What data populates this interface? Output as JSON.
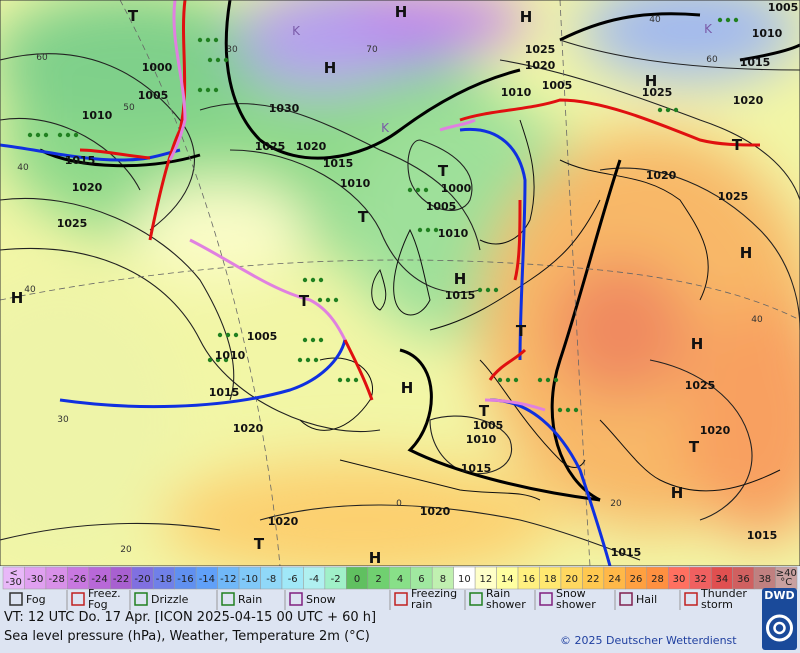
{
  "map": {
    "pressure_labels": [
      "1000",
      "1005",
      "1010",
      "1015",
      "1020",
      "1025",
      "1030",
      "1025",
      "1020",
      "1015",
      "1010",
      "1000",
      "1005",
      "1010",
      "1015",
      "1005",
      "1010",
      "1015",
      "1020",
      "1005",
      "1010",
      "1015",
      "1020",
      "1020",
      "1025",
      "1020",
      "1010",
      "1005",
      "1025",
      "1020",
      "1015",
      "1010",
      "1005",
      "1020",
      "1025",
      "1025",
      "1020",
      "1015",
      "1015"
    ],
    "small_labels": [
      "40",
      "40",
      "30",
      "20",
      "60",
      "50",
      "70",
      "40",
      "20",
      "0",
      "60",
      "30",
      "40"
    ],
    "centers": [
      "H",
      "H",
      "H",
      "H",
      "H",
      "H",
      "H",
      "H",
      "H",
      "H",
      "H",
      "T",
      "T",
      "T",
      "T",
      "T",
      "T",
      "T",
      "T",
      "T"
    ],
    "k_labels": [
      "K",
      "K",
      "K"
    ]
  },
  "scale": {
    "labels": [
      [
        "<",
        "-30"
      ],
      [
        "-30"
      ],
      [
        "-28"
      ],
      [
        "-26"
      ],
      [
        "-24"
      ],
      [
        "-22"
      ],
      [
        "-20"
      ],
      [
        "-18"
      ],
      [
        "-16"
      ],
      [
        "-14"
      ],
      [
        "-12"
      ],
      [
        "-10"
      ],
      [
        "-8"
      ],
      [
        "-6"
      ],
      [
        "-4"
      ],
      [
        "-2"
      ],
      [
        "0"
      ],
      [
        "2"
      ],
      [
        "4"
      ],
      [
        "6"
      ],
      [
        "8"
      ],
      [
        "10"
      ],
      [
        "12"
      ],
      [
        "14"
      ],
      [
        "16"
      ],
      [
        "18"
      ],
      [
        "20"
      ],
      [
        "22"
      ],
      [
        "24"
      ],
      [
        "26"
      ],
      [
        "28"
      ],
      [
        "30"
      ],
      [
        "32"
      ],
      [
        "34"
      ],
      [
        "36"
      ],
      [
        "38"
      ],
      [
        "≥40",
        "°C"
      ]
    ]
  },
  "legend": {
    "items": [
      [
        "Fog"
      ],
      [
        "Freez.",
        "Fog"
      ],
      [
        "Drizzle"
      ],
      [
        "Rain"
      ],
      [
        "Snow"
      ],
      [
        "Freezing",
        "rain"
      ],
      [
        "Rain",
        "shower"
      ],
      [
        "Snow",
        "shower"
      ],
      [
        "Hail"
      ],
      [
        "Thunder",
        "storm"
      ]
    ]
  },
  "footer": {
    "valid_time": "VT: 12 UTC Do.  17 Apr. [ICON 2025-04-15  00 UTC + 60 h]",
    "description": "Sea level pressure (hPa), Weather, Temperature 2m (°C)",
    "copyright": "© 2025 Deutscher Wetterdienst",
    "logo": "DWD"
  }
}
